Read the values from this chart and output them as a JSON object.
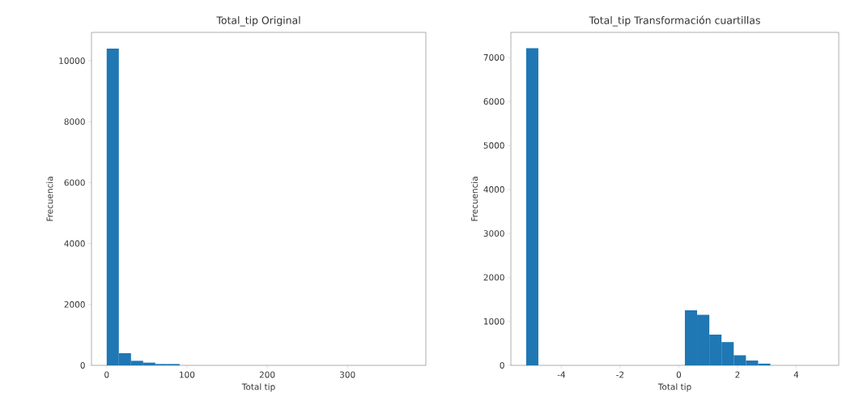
{
  "chart_data": [
    {
      "type": "histogram",
      "title": "Total_tip Original",
      "xlabel": "Total tip",
      "ylabel": "Frecuencia",
      "color": "#1f77b4",
      "bins": [
        0,
        15.15,
        30.3,
        45.45,
        60.6,
        75.75,
        90.9,
        106.05,
        121.2,
        136.35,
        151.5,
        166.65,
        181.8,
        196.95,
        212.1,
        227.25,
        242.4,
        257.55,
        272.7,
        287.85,
        303,
        318.15,
        333.3,
        348.45,
        363.6,
        378.75
      ],
      "values": [
        10400,
        400,
        150,
        90,
        45,
        45,
        0,
        0,
        0,
        0,
        0,
        0,
        0,
        0,
        0,
        0,
        0,
        0,
        0,
        0,
        0,
        0,
        0,
        0,
        0
      ],
      "xlim": [
        -18.94,
        397.69
      ],
      "ylim": [
        0,
        10930
      ],
      "xticks": [
        0,
        100,
        200,
        300
      ],
      "yticks": [
        0,
        2000,
        4000,
        6000,
        8000,
        10000
      ],
      "grid": false
    },
    {
      "type": "histogram",
      "title": "Total_tip Transformación cuartillas",
      "xlabel": "Total tip",
      "ylabel": "Frecuencia",
      "color": "#1f77b4",
      "bins": [
        -5.2,
        -4.784,
        -4.368,
        -3.952,
        -3.536,
        -3.12,
        -2.704,
        -2.288,
        -1.872,
        -1.456,
        -1.04,
        -0.624,
        -0.208,
        0.208,
        0.624,
        1.04,
        1.456,
        1.872,
        2.288,
        2.704,
        3.12,
        3.536,
        3.952,
        4.368,
        4.784,
        5.2
      ],
      "values": [
        7210,
        0,
        0,
        0,
        0,
        0,
        0,
        0,
        0,
        0,
        0,
        0,
        0,
        1250,
        1150,
        700,
        530,
        230,
        110,
        40,
        0,
        0,
        0,
        0,
        0
      ],
      "xlim": [
        -5.72,
        5.45
      ],
      "ylim": [
        0,
        7570
      ],
      "xticks": [
        -4,
        -2,
        0,
        2,
        4
      ],
      "yticks": [
        0,
        1000,
        2000,
        3000,
        4000,
        5000,
        6000,
        7000
      ],
      "grid": false
    }
  ]
}
